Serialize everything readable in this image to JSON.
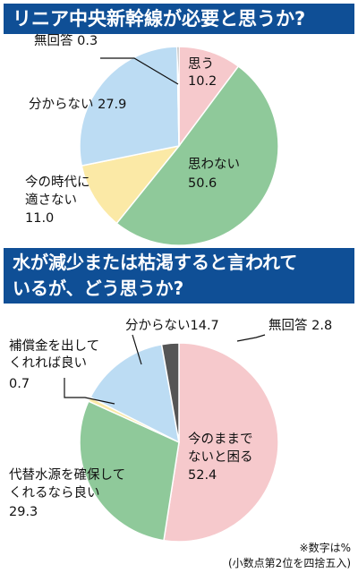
{
  "charts": {
    "c1": {
      "title": "リニア中央新幹線が必要と思うか?",
      "chart_data": {
        "type": "pie",
        "title": "リニア中央新幹線が必要と思うか?",
        "unit": "%",
        "slices": [
          {
            "label": "思う",
            "value": 10.2,
            "color": "#f6c9cc"
          },
          {
            "label": "思わない",
            "value": 50.6,
            "color": "#8fc99a"
          },
          {
            "label": "今の時代に適さない",
            "value": 11.0,
            "color": "#fbe9a6"
          },
          {
            "label": "分からない",
            "value": 27.9,
            "color": "#bcdcf3"
          },
          {
            "label": "無回答",
            "value": 0.3,
            "color": "#555555"
          }
        ]
      },
      "labels": {
        "omou": {
          "l1": "思う",
          "l2": "10.2"
        },
        "omowanai": {
          "l1": "思わない",
          "l2": "50.6"
        },
        "imano": {
          "l1": "今の時代に",
          "l2": "適さない",
          "l3": "11.0"
        },
        "wakaranai": {
          "l1": "分からない 27.9"
        },
        "mukaito": {
          "l1": "無回答 0.3"
        }
      }
    },
    "c2": {
      "title_line1": "水が減少または枯渇すると言われて",
      "title_line2": "いるが、どう思うか?",
      "chart_data": {
        "type": "pie",
        "title": "水が減少または枯渇すると言われているが、どう思うか?",
        "unit": "%",
        "slices": [
          {
            "label": "今のままでないと困る",
            "value": 52.4,
            "color": "#f6c9cc"
          },
          {
            "label": "代替水源を確保してくれるなら良い",
            "value": 29.3,
            "color": "#8fc99a"
          },
          {
            "label": "補償金を出してくれれば良い",
            "value": 0.7,
            "color": "#fbe9a6"
          },
          {
            "label": "分からない",
            "value": 14.7,
            "color": "#bcdcf3"
          },
          {
            "label": "無回答",
            "value": 2.8,
            "color": "#555555"
          }
        ]
      },
      "labels": {
        "imanomama": {
          "l1": "今のままで",
          "l2": "ないと困る",
          "l3": "52.4"
        },
        "daitai": {
          "l1": "代替水源を確保して",
          "l2": "くれるなら良い",
          "l3": "29.3"
        },
        "hoshokin": {
          "l1": "補償金を出して",
          "l2": "くれれば良い",
          "l3": "0.7"
        },
        "wakaranai": {
          "l1": "分からない14.7"
        },
        "mukaito": {
          "l1": "無回答 2.8"
        }
      }
    }
  },
  "footnote": {
    "line1": "※数字は%",
    "line2": "(小数点第2位を四捨五入)"
  }
}
